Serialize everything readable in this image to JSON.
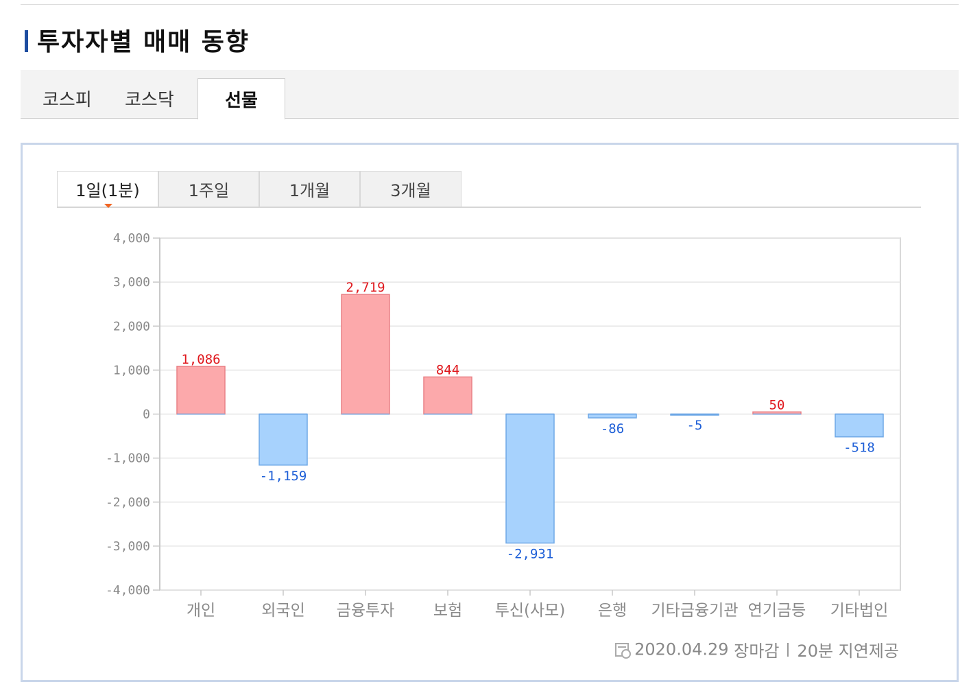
{
  "page": {
    "title": "투자자별 매매 동향",
    "market_tabs": [
      "코스피",
      "코스닥",
      "선물"
    ],
    "market_tab_active": "선물",
    "period_tabs": [
      "1일(1분)",
      "1주일",
      "1개월",
      "3개월"
    ],
    "period_tab_active": "1일(1분)",
    "footer": {
      "date": "2020.04.29",
      "status": "장마감",
      "delay": "20분 지연제공"
    }
  },
  "colors": {
    "positive_fill": "#fca9ab",
    "positive_stroke": "#e98186",
    "positive_label": "#e0191e",
    "negative_fill": "#a7d2fd",
    "negative_stroke": "#6fa8e6",
    "negative_label": "#1e5fd7",
    "panel_border": "#c9d6ea",
    "title_accent": "#1e4da0"
  },
  "chart_data": {
    "type": "bar",
    "categories": [
      "개인",
      "외국인",
      "금융투자",
      "보험",
      "투신(사모)",
      "은행",
      "기타금융기관",
      "연기금등",
      "기타법인"
    ],
    "values": [
      1086,
      -1159,
      2719,
      844,
      -2931,
      -86,
      -5,
      50,
      -518
    ],
    "value_labels": [
      "1,086",
      "-1,159",
      "2,719",
      "844",
      "-2,931",
      "-86",
      "-5",
      "50",
      "-518"
    ],
    "yticks": [
      4000,
      3000,
      2000,
      1000,
      0,
      -1000,
      -2000,
      -3000,
      -4000
    ],
    "ytick_labels": [
      "4,000",
      "3,000",
      "2,000",
      "1,000",
      "0",
      "-1,000",
      "-2,000",
      "-3,000",
      "-4,000"
    ],
    "ylim": [
      -4000,
      4000
    ],
    "grid": true,
    "title": "",
    "xlabel": "",
    "ylabel": ""
  }
}
